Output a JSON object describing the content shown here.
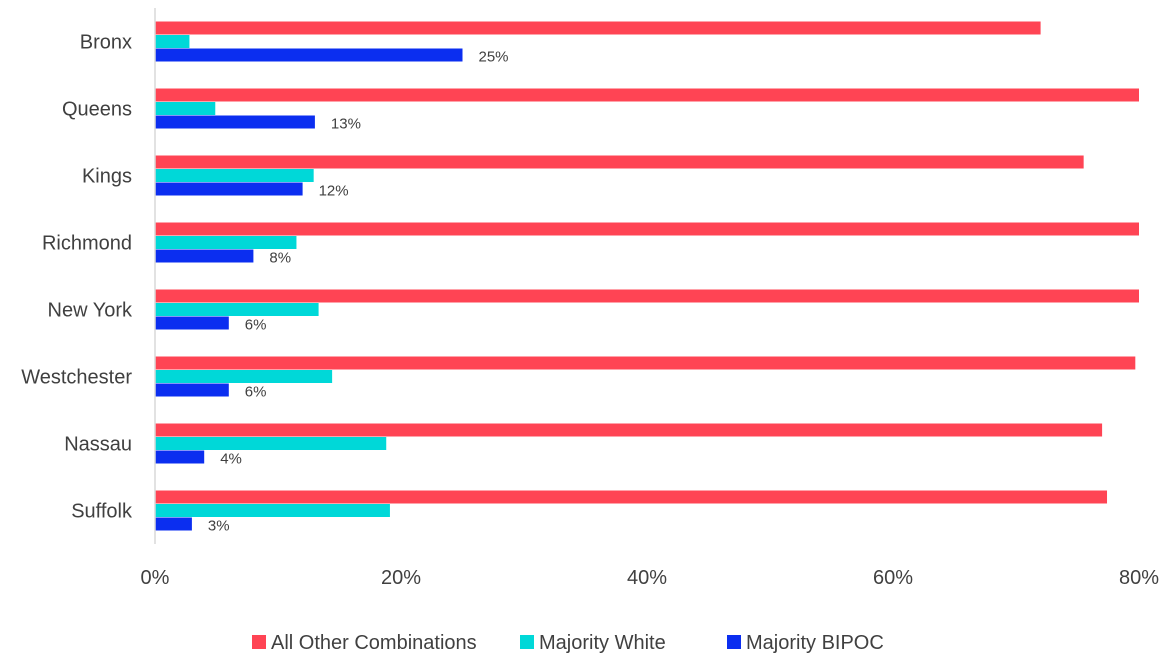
{
  "chart_data": {
    "type": "bar",
    "orientation": "horizontal",
    "categories": [
      "Bronx",
      "Queens",
      "Kings",
      "Richmond",
      "New York",
      "Westchester",
      "Nassau",
      "Suffolk"
    ],
    "series": [
      {
        "name": "All Other Combinations",
        "color": "#ff4454",
        "values": [
          72,
          80.2,
          75.5,
          80.2,
          80.2,
          79.7,
          77,
          77.4
        ]
      },
      {
        "name": "Majority White",
        "color": "#00d8d8",
        "values": [
          2.8,
          4.9,
          12.9,
          11.5,
          13.3,
          14.4,
          18.8,
          19.1
        ]
      },
      {
        "name": "Majority BIPOC",
        "color": "#0b2ef0",
        "values": [
          25,
          13,
          12,
          8,
          6,
          6,
          4,
          3
        ]
      }
    ],
    "data_labels": {
      "Majority BIPOC": [
        "25%",
        "13%",
        "12%",
        "8%",
        "6%",
        "6%",
        "4%",
        "3%"
      ]
    },
    "xticks": [
      "0%",
      "20%",
      "40%",
      "60%",
      "80%"
    ],
    "xlim": [
      0,
      80
    ],
    "grid": false,
    "legend_position": "bottom"
  }
}
